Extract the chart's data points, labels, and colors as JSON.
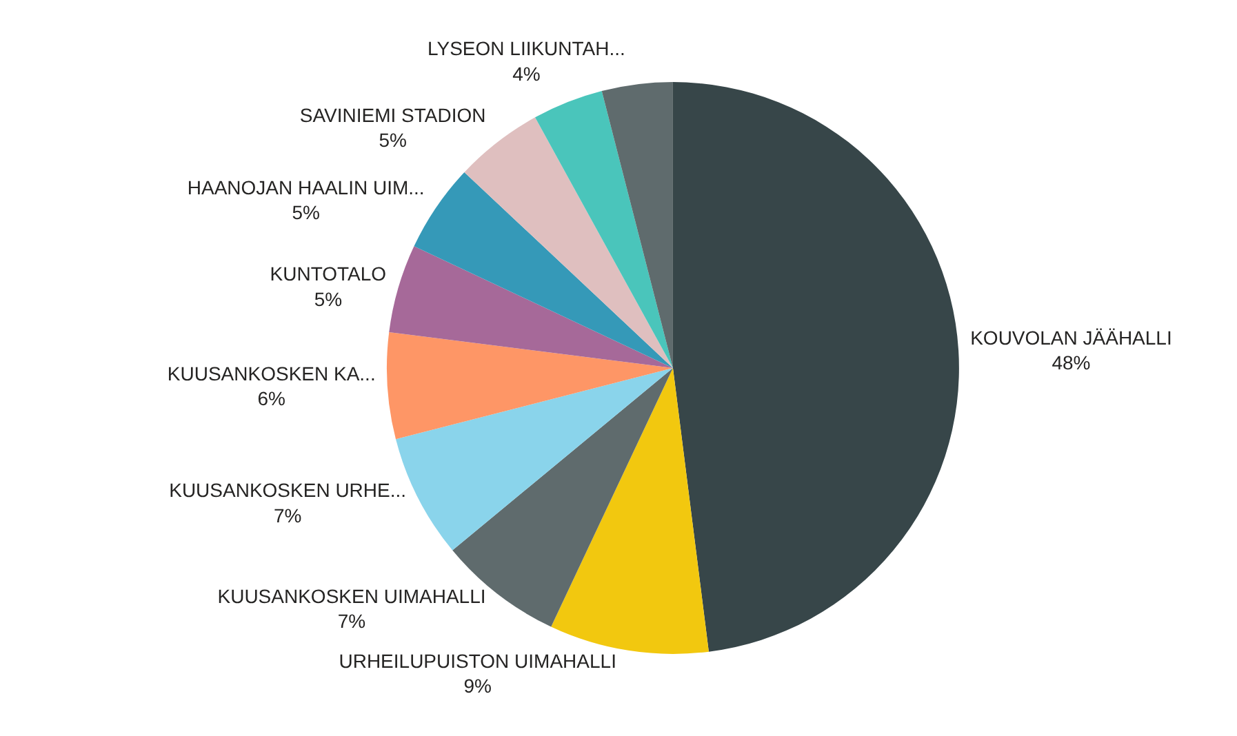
{
  "chart_data": {
    "type": "pie",
    "categories": [
      "KOUVOLAN JÄÄHALLI",
      "URHEILUPUISTON UIMAHALLI",
      "KUUSANKOSKEN UIMAHALLI",
      "KUUSANKOSKEN URHE...",
      "KUUSANKOSKEN KA...",
      "KUNTOTALO",
      "HAANOJAN HAALIN UIM...",
      "SAVINIEMI STADION",
      null,
      "LYSEON LIIKUNTAH..."
    ],
    "values": [
      48,
      9,
      7,
      7,
      6,
      5,
      5,
      5,
      4,
      4
    ],
    "value_labels": [
      "48%",
      "9%",
      "7%",
      "7%",
      "6%",
      "5%",
      "5%",
      "5%",
      null,
      "4%"
    ],
    "colors": [
      "#374649",
      "#f2c80f",
      "#5f6b6d",
      "#8ad4eb",
      "#fe9666",
      "#a66999",
      "#3599b8",
      "#dfbfbf",
      "#4ac5bb",
      "#5f6b6d"
    ],
    "legend": false
  }
}
